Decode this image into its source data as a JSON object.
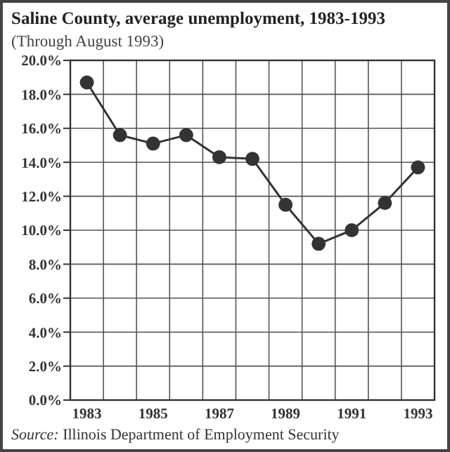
{
  "chart_data": {
    "type": "line",
    "title": "Saline County, average unemployment, 1983-1993",
    "subtitle": "(Through August 1993)",
    "categories": [
      "1983",
      null,
      "1985",
      null,
      "1987",
      null,
      "1989",
      null,
      "1991",
      null,
      "1993"
    ],
    "series": [
      {
        "color": "#333333",
        "values": [
          18.7,
          15.6,
          15.1,
          15.6,
          14.3,
          14.2,
          11.5,
          9.2,
          10.0,
          11.6,
          13.7
        ]
      }
    ],
    "ylim": [
      0,
      20
    ],
    "yticks": [
      {
        "value": 0,
        "label": "0.0%"
      },
      {
        "value": 2,
        "label": "2.0%"
      },
      {
        "value": 4,
        "label": "4.0%"
      },
      {
        "value": 6,
        "label": "6.0%"
      },
      {
        "value": 8,
        "label": "8.0%"
      },
      {
        "value": 10,
        "label": "10.0%"
      },
      {
        "value": 12,
        "label": "12.0%"
      },
      {
        "value": 14,
        "label": "14.0%"
      },
      {
        "value": 16,
        "label": "16.0%"
      },
      {
        "value": 18,
        "label": "18.0%"
      },
      {
        "value": 20,
        "label": "20.0%"
      }
    ],
    "grid": true,
    "marker": "circle",
    "line_style": "solid",
    "annotations": [
      "Source: Illinois Department of Employment Security"
    ]
  }
}
